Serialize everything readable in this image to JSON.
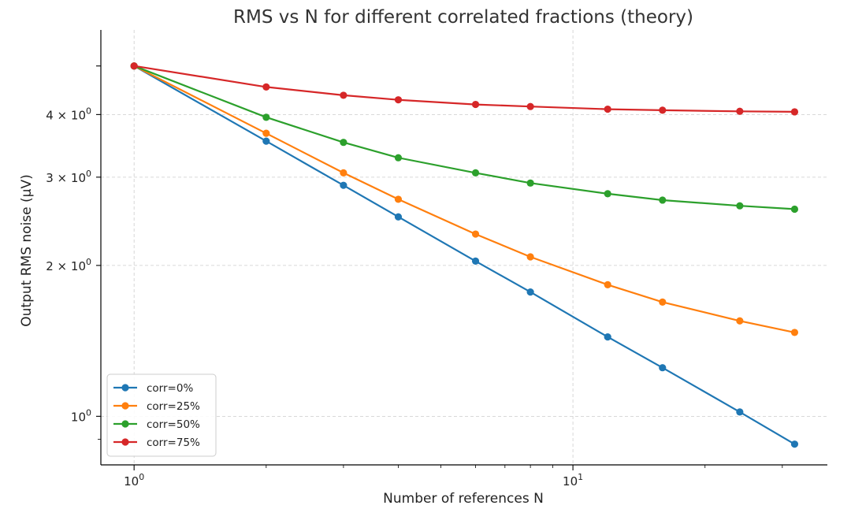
{
  "chart_data": {
    "type": "line",
    "title": "RMS vs N for different correlated fractions (theory)",
    "xlabel": "Number of references N",
    "ylabel": "Output RMS noise (μV)",
    "xscale": "log",
    "yscale": "log",
    "xlim": [
      0.84,
      38
    ],
    "ylim": [
      0.8,
      5.9
    ],
    "x": [
      1,
      2,
      3,
      4,
      6,
      8,
      12,
      16,
      24,
      32
    ],
    "x_ticks": [
      {
        "value": 1,
        "base": "10",
        "exp": "0"
      },
      {
        "value": 10,
        "base": "10",
        "exp": "1"
      }
    ],
    "y_ticks": [
      {
        "value": 1,
        "mant": "",
        "base": "10",
        "exp": "0"
      },
      {
        "value": 2,
        "mant": "2 × ",
        "base": "10",
        "exp": "0"
      },
      {
        "value": 3,
        "mant": "3 × ",
        "base": "10",
        "exp": "0"
      },
      {
        "value": 4,
        "mant": "4 × ",
        "base": "10",
        "exp": "0"
      }
    ],
    "grid": true,
    "legend_position": "lower-left",
    "series": [
      {
        "name": "corr=0%",
        "color": "#1f77b4",
        "values": [
          5.0,
          3.54,
          2.89,
          2.5,
          2.04,
          1.77,
          1.44,
          1.25,
          1.02,
          0.88
        ]
      },
      {
        "name": "corr=25%",
        "color": "#ff7f0e",
        "values": [
          5.0,
          3.67,
          3.06,
          2.71,
          2.31,
          2.08,
          1.83,
          1.69,
          1.55,
          1.47
        ]
      },
      {
        "name": "corr=50%",
        "color": "#2ca02c",
        "values": [
          5.0,
          3.95,
          3.52,
          3.28,
          3.06,
          2.92,
          2.78,
          2.7,
          2.63,
          2.59
        ]
      },
      {
        "name": "corr=75%",
        "color": "#d62728",
        "values": [
          5.0,
          4.54,
          4.37,
          4.28,
          4.19,
          4.15,
          4.1,
          4.08,
          4.06,
          4.05
        ]
      }
    ]
  }
}
